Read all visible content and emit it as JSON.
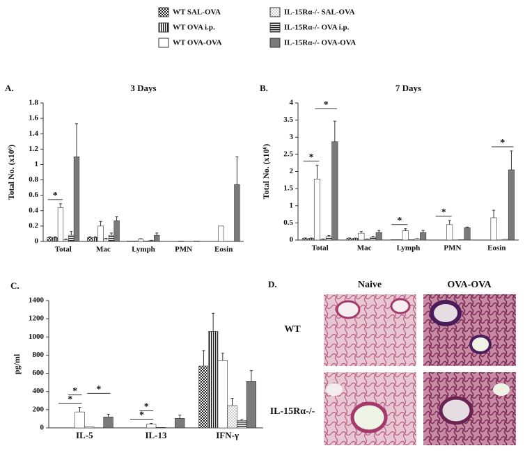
{
  "legend": [
    {
      "name": "WT SAL-OVA",
      "color": "#ffffff",
      "pattern": "checker"
    },
    {
      "name": "WT OVA i.p.",
      "color": "#ffffff",
      "pattern": "vstripe"
    },
    {
      "name": "WT OVA-OVA",
      "color": "#ffffff"
    },
    {
      "name": "IL-15Rα-/- SAL-OVA",
      "color": "#ffffff",
      "pattern": "dots"
    },
    {
      "name": "IL-15Rα-/- OVA i.p.",
      "color": "#ffffff",
      "pattern": "hstripe"
    },
    {
      "name": "IL-15Rα-/- OVA-OVA",
      "color": "#7a7a7a"
    }
  ],
  "chart_data": [
    {
      "type": "bar",
      "label": "A.",
      "title": "3 Days",
      "y_label": "Total No. (x10⁶)",
      "categories": [
        "Total",
        "Mac",
        "Lymph",
        "PMN",
        "Eosin"
      ],
      "ylim": [
        0,
        1.8
      ],
      "yticks": [
        0,
        0.2,
        0.4,
        0.6,
        0.8,
        1,
        1.2,
        1.4,
        1.6,
        1.8
      ],
      "series": [
        {
          "values": [
            0.05,
            0.05,
            0.005,
            0,
            0
          ],
          "errors": [
            0.01,
            0.01,
            0,
            0,
            0
          ]
        },
        {
          "values": [
            0.05,
            0.05,
            0.005,
            0,
            0
          ],
          "errors": [
            0.01,
            0.01,
            0,
            0,
            0
          ]
        },
        {
          "values": [
            0.44,
            0.2,
            0.03,
            0.005,
            0.2
          ],
          "errors": [
            0.05,
            0.06,
            0.005,
            0,
            0
          ]
        },
        {
          "values": [
            0.02,
            0.03,
            0.005,
            0,
            0
          ],
          "errors": [
            0.01,
            0.01,
            0,
            0,
            0
          ]
        },
        {
          "values": [
            0.08,
            0.08,
            0.01,
            0,
            0
          ],
          "errors": [
            0.05,
            0.03,
            0.005,
            0,
            0
          ]
        },
        {
          "values": [
            1.1,
            0.27,
            0.08,
            0.005,
            0.74
          ],
          "errors": [
            0.43,
            0.05,
            0.03,
            0,
            0.36
          ]
        }
      ],
      "annotations": [
        {
          "text": "*",
          "category": 0,
          "series": [
            0,
            2
          ]
        }
      ]
    },
    {
      "type": "bar",
      "label": "B.",
      "title": "7 Days",
      "y_label": "Total No. (x10⁶)",
      "categories": [
        "Total",
        "Mac",
        "Lymph",
        "PMN",
        "Eosin"
      ],
      "ylim": [
        0,
        4
      ],
      "yticks": [
        0,
        0.5,
        1,
        1.5,
        2,
        2.5,
        3,
        3.5,
        4
      ],
      "series": [
        {
          "values": [
            0.05,
            0.05,
            0.01,
            0,
            0
          ],
          "errors": [
            0.01,
            0.01,
            0,
            0,
            0
          ]
        },
        {
          "values": [
            0.05,
            0.05,
            0.01,
            0,
            0
          ],
          "errors": [
            0.01,
            0.01,
            0,
            0,
            0
          ]
        },
        {
          "values": [
            1.78,
            0.2,
            0.27,
            0.45,
            0.65
          ],
          "errors": [
            0.4,
            0.05,
            0.06,
            0.12,
            0.22
          ]
        },
        {
          "values": [
            0.02,
            0.02,
            0.01,
            0,
            0
          ],
          "errors": [
            0.01,
            0.01,
            0,
            0,
            0
          ]
        },
        {
          "values": [
            0.1,
            0.08,
            0.03,
            0.01,
            0.02
          ],
          "errors": [
            0.03,
            0.03,
            0.01,
            0,
            0
          ]
        },
        {
          "values": [
            2.87,
            0.22,
            0.22,
            0.36,
            2.05
          ],
          "errors": [
            0.6,
            0.06,
            0.06,
            0.02,
            0.55
          ]
        }
      ],
      "annotations": [
        {
          "text": "*",
          "category": 0,
          "series": [
            0,
            2
          ]
        },
        {
          "text": "*",
          "category": 0,
          "series": [
            2,
            5
          ]
        },
        {
          "text": "*",
          "category": 2,
          "series": [
            0,
            2
          ]
        },
        {
          "text": "*",
          "category": 3,
          "series": [
            0,
            2
          ]
        },
        {
          "text": "*",
          "category": 4,
          "series": [
            2,
            5
          ]
        }
      ]
    },
    {
      "type": "bar",
      "label": "C.",
      "y_label": "pg/ml",
      "categories": [
        "IL-5",
        "IL-13",
        "IFN-γ"
      ],
      "ylim": [
        0,
        1400
      ],
      "yticks": [
        0,
        200,
        400,
        600,
        800,
        1000,
        1200,
        1400
      ],
      "series": [
        {
          "values": [
            0,
            0,
            680
          ],
          "errors": [
            0,
            0,
            170
          ]
        },
        {
          "values": [
            0,
            0,
            1060
          ],
          "errors": [
            0,
            0,
            200
          ]
        },
        {
          "values": [
            175,
            40,
            740
          ],
          "errors": [
            50,
            10,
            80
          ]
        },
        {
          "values": [
            10,
            5,
            245
          ],
          "errors": [
            0,
            0,
            80
          ]
        },
        {
          "values": [
            0,
            0,
            80
          ],
          "errors": [
            0,
            0,
            10
          ]
        },
        {
          "values": [
            120,
            105,
            510
          ],
          "errors": [
            30,
            35,
            120
          ]
        }
      ],
      "annotations": [
        {
          "text": "*",
          "category": 0,
          "series": [
            0,
            2
          ]
        },
        {
          "text": "*",
          "category": 0,
          "series": [
            1,
            2
          ]
        },
        {
          "text": "*",
          "category": 0,
          "series": [
            3,
            5
          ]
        },
        {
          "text": "*",
          "category": 1,
          "series": [
            0,
            2
          ]
        },
        {
          "text": "*",
          "category": 1,
          "series": [
            1,
            2
          ]
        }
      ]
    }
  ],
  "micrographs": {
    "label": "D.",
    "columns": [
      "Naive",
      "OVA-OVA"
    ],
    "rows": [
      "WT",
      "IL-15Rα-/-"
    ]
  }
}
